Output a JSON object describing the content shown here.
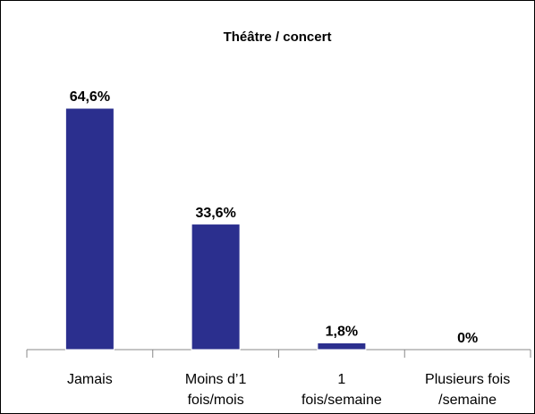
{
  "chart_data": {
    "type": "bar",
    "title": "Théâtre / concert",
    "categories": [
      [
        "Jamais"
      ],
      [
        "Moins d’1",
        "fois/mois"
      ],
      [
        "1",
        "fois/semaine"
      ],
      [
        "Plusieurs fois",
        "/semaine"
      ]
    ],
    "values": [
      64.6,
      33.6,
      1.8,
      0
    ],
    "value_labels": [
      "64,6%",
      "33,6%",
      "1,8%",
      "0%"
    ],
    "color": "#2b2f8e"
  }
}
